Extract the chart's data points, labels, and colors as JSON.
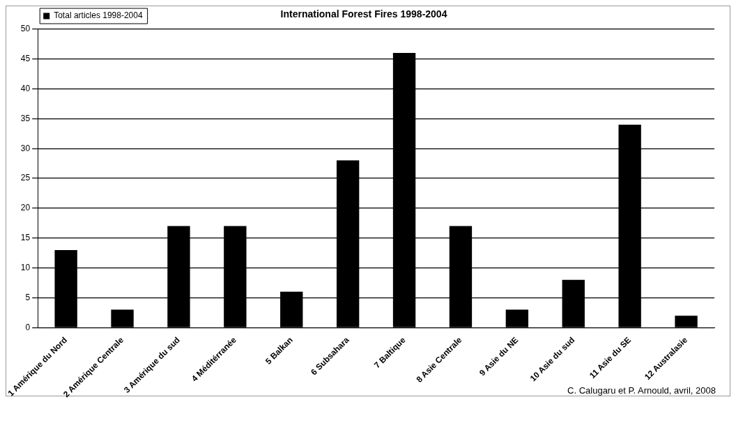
{
  "chart_data": {
    "type": "bar",
    "title": "International Forest Fires 1998-2004",
    "categories": [
      "1 Amérique du Nord",
      "2 Amérique Centrale",
      "3 Amérique du sud",
      "4 Méditérranée",
      "5 Balkan",
      "6 Subsahara",
      "7 Baltique",
      "8 Asie Centrale",
      "9 Asie du NE",
      "10 Asie du sud",
      "11 Asie du SE",
      "12 Australasie"
    ],
    "series": [
      {
        "name": "Total articles 1998-2004",
        "color": "#000000",
        "values": [
          13,
          3,
          17,
          17,
          6,
          28,
          46,
          17,
          3,
          8,
          34,
          2
        ]
      }
    ],
    "ylim": [
      0,
      50
    ],
    "yticks": [
      0,
      5,
      10,
      15,
      20,
      25,
      30,
      35,
      40,
      45,
      50
    ],
    "grid": "y",
    "legend": "top left",
    "annotations": [
      "C. Calugaru et P. Arnould, avril, 2008"
    ]
  }
}
